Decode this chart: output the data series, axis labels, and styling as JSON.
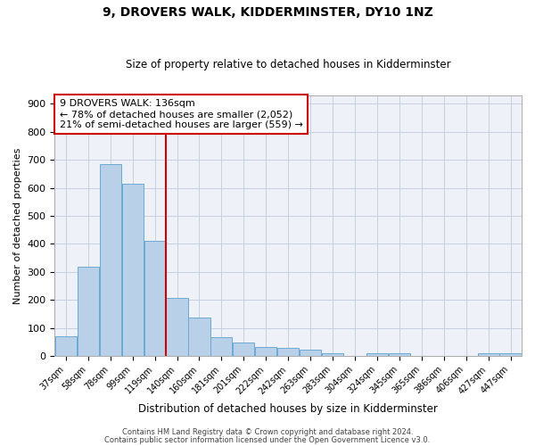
{
  "title1": "9, DROVERS WALK, KIDDERMINSTER, DY10 1NZ",
  "title2": "Size of property relative to detached houses in Kidderminster",
  "xlabel": "Distribution of detached houses by size in Kidderminster",
  "ylabel": "Number of detached properties",
  "categories": [
    "37sqm",
    "58sqm",
    "78sqm",
    "99sqm",
    "119sqm",
    "140sqm",
    "160sqm",
    "181sqm",
    "201sqm",
    "222sqm",
    "242sqm",
    "263sqm",
    "283sqm",
    "304sqm",
    "324sqm",
    "345sqm",
    "365sqm",
    "386sqm",
    "406sqm",
    "427sqm",
    "447sqm"
  ],
  "values": [
    70,
    320,
    685,
    615,
    410,
    207,
    137,
    68,
    47,
    32,
    30,
    22,
    10,
    0,
    8,
    8,
    0,
    0,
    0,
    10,
    8
  ],
  "bar_color": "#b8d0e8",
  "bar_edge_color": "#6aaad4",
  "redline_bin": 4.5,
  "redline_label": "9 DROVERS WALK: 136sqm",
  "annotation_line1": "← 78% of detached houses are smaller (2,052)",
  "annotation_line2": "21% of semi-detached houses are larger (559) →",
  "redline_color": "#cc0000",
  "annotation_box_color": "#ffffff",
  "annotation_box_edge": "#cc0000",
  "grid_color": "#c8d0e0",
  "bg_color": "#eef2f8",
  "plot_bg": "#eef2f8",
  "ylim": [
    0,
    930
  ],
  "yticks": [
    0,
    100,
    200,
    300,
    400,
    500,
    600,
    700,
    800,
    900
  ],
  "title1_fontsize": 10,
  "title2_fontsize": 8.5,
  "footer1": "Contains HM Land Registry data © Crown copyright and database right 2024.",
  "footer2": "Contains public sector information licensed under the Open Government Licence v3.0."
}
